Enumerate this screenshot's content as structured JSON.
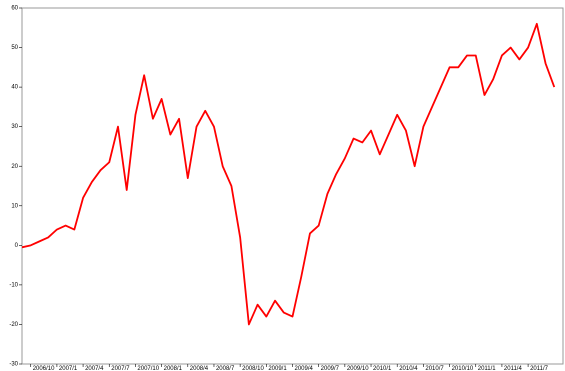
{
  "chart_data": {
    "type": "line",
    "categories": [
      null,
      "2006/10",
      null,
      null,
      "2007/1",
      null,
      null,
      "2007/4",
      null,
      null,
      "2007/7",
      null,
      null,
      "2007/10",
      null,
      null,
      "2008/1",
      null,
      null,
      "2008/4",
      null,
      null,
      "2008/7",
      null,
      null,
      "2008/10",
      null,
      null,
      "2009/1",
      null,
      null,
      "2009/4",
      null,
      null,
      "2009/7",
      null,
      null,
      "2009/10",
      null,
      null,
      "2010/1",
      null,
      null,
      "2010/4",
      null,
      null,
      "2010/7",
      null,
      null,
      "2010/10",
      null,
      null,
      "2011/1",
      null,
      null,
      "2011/4",
      null,
      null,
      "2011/7",
      null,
      null,
      null
    ],
    "series": [
      {
        "color": "#ff0000",
        "values": [
          -0.5,
          0,
          1,
          2,
          4,
          5,
          4,
          12,
          16,
          19,
          21,
          30,
          14,
          33,
          43,
          32,
          37,
          28,
          32,
          17,
          30,
          34,
          30,
          20,
          15,
          2,
          -20,
          -15,
          -18,
          -14,
          -17,
          -18,
          -8,
          3,
          5,
          13,
          18,
          22,
          27,
          26,
          29,
          23,
          28,
          33,
          29,
          20,
          30,
          35,
          40,
          45,
          45,
          48,
          48,
          38,
          42,
          48,
          50,
          47,
          50,
          56,
          46,
          40
        ]
      }
    ],
    "ylim": [
      -30,
      60
    ],
    "yticks": [
      -30,
      -20,
      -10,
      0,
      10,
      20,
      30,
      40,
      50,
      60
    ]
  }
}
